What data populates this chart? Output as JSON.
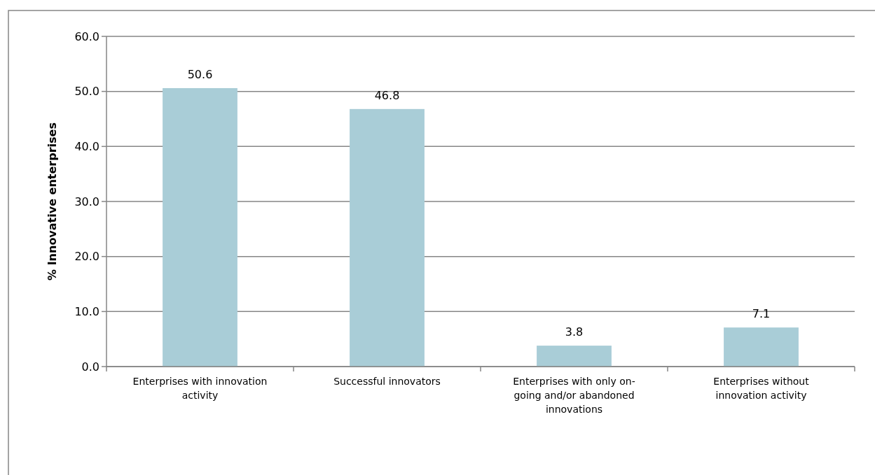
{
  "chart_data": {
    "type": "bar",
    "categories": [
      "Enterprises with innovation activity",
      "Successful innovators",
      "Enterprises with only on-going and/or abandoned innovations",
      "Enterprises without innovation activity"
    ],
    "values": [
      50.6,
      46.8,
      3.8,
      7.1
    ],
    "color": "#a9cdd7",
    "ylabel": "% Innovative enterprises",
    "ylim": [
      0,
      60
    ],
    "yticks": [
      {
        "value": 0,
        "label": "0.0"
      },
      {
        "value": 10,
        "label": "10.0"
      },
      {
        "value": 20,
        "label": "20.0"
      },
      {
        "value": 30,
        "label": "30.0"
      },
      {
        "value": 40,
        "label": "40.0"
      },
      {
        "value": 50,
        "label": "50.0"
      },
      {
        "value": 60,
        "label": "60.0"
      }
    ],
    "grid": "y",
    "data_labels": true
  }
}
